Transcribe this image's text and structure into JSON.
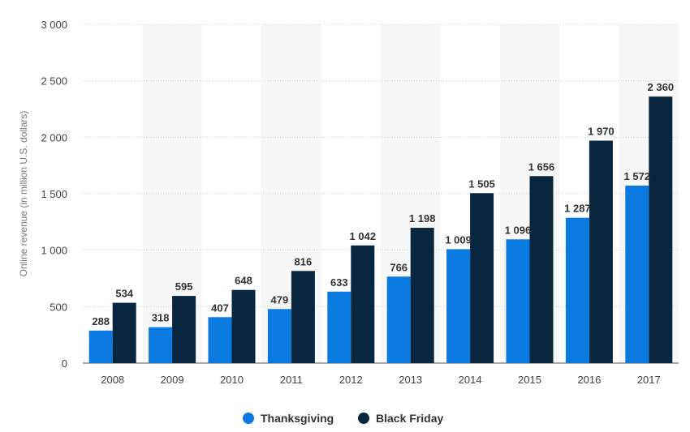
{
  "chart_data": {
    "type": "bar",
    "title": "",
    "xlabel": "",
    "ylabel": "Online revenue (in million U.S. dollars)",
    "categories": [
      "2008",
      "2009",
      "2010",
      "2011",
      "2012",
      "2013",
      "2014",
      "2015",
      "2016",
      "2017"
    ],
    "series": [
      {
        "name": "Thanksgiving",
        "color": "#0b7ae0",
        "values": [
          288,
          318,
          407,
          479,
          633,
          766,
          1009,
          1096,
          1287,
          1572
        ],
        "labels": [
          "288",
          "318",
          "407",
          "479",
          "633",
          "766",
          "1 009",
          "1 096",
          "1 287",
          "1 572"
        ]
      },
      {
        "name": "Black Friday",
        "color": "#082640",
        "values": [
          534,
          595,
          648,
          816,
          1042,
          1198,
          1505,
          1656,
          1970,
          2360
        ],
        "labels": [
          "534",
          "595",
          "648",
          "816",
          "1 042",
          "1 198",
          "1 505",
          "1 656",
          "1 970",
          "2 360"
        ]
      }
    ],
    "ylim": [
      0,
      3000
    ],
    "yticks": [
      0,
      500,
      1000,
      1500,
      2000,
      2500,
      3000
    ],
    "ytick_labels": [
      "0",
      "500",
      "1 000",
      "1 500",
      "2 000",
      "2 500",
      "3 000"
    ],
    "grid": true,
    "alternating_bands": true,
    "band_color": "#f7f7f7",
    "legend_position": "bottom-center"
  }
}
